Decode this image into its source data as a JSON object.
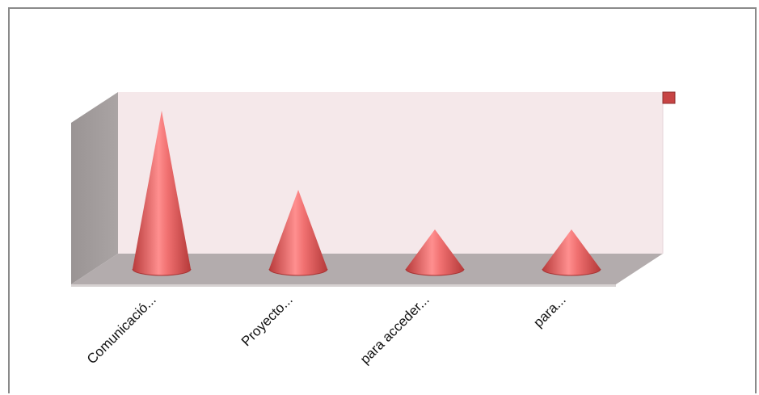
{
  "chart_data": {
    "type": "bar",
    "mark_shape": "cone",
    "categories": [
      "Comunicació...",
      "Proyecto...",
      "para acceder...",
      "para..."
    ],
    "series": [
      {
        "values": [
          4,
          2,
          1,
          1
        ]
      }
    ],
    "ylim": [
      0,
      4.5
    ],
    "grid": false,
    "legend_position": "top-right",
    "colors": {
      "cone": "#e06464",
      "cone_dark": "#b73c3c",
      "cone_light": "#ff8e8e",
      "back_wall": "#f5e8ea",
      "side_wall": "#a09a9a",
      "floor": "#b3acad",
      "legend_swatch": "#c74444"
    }
  }
}
